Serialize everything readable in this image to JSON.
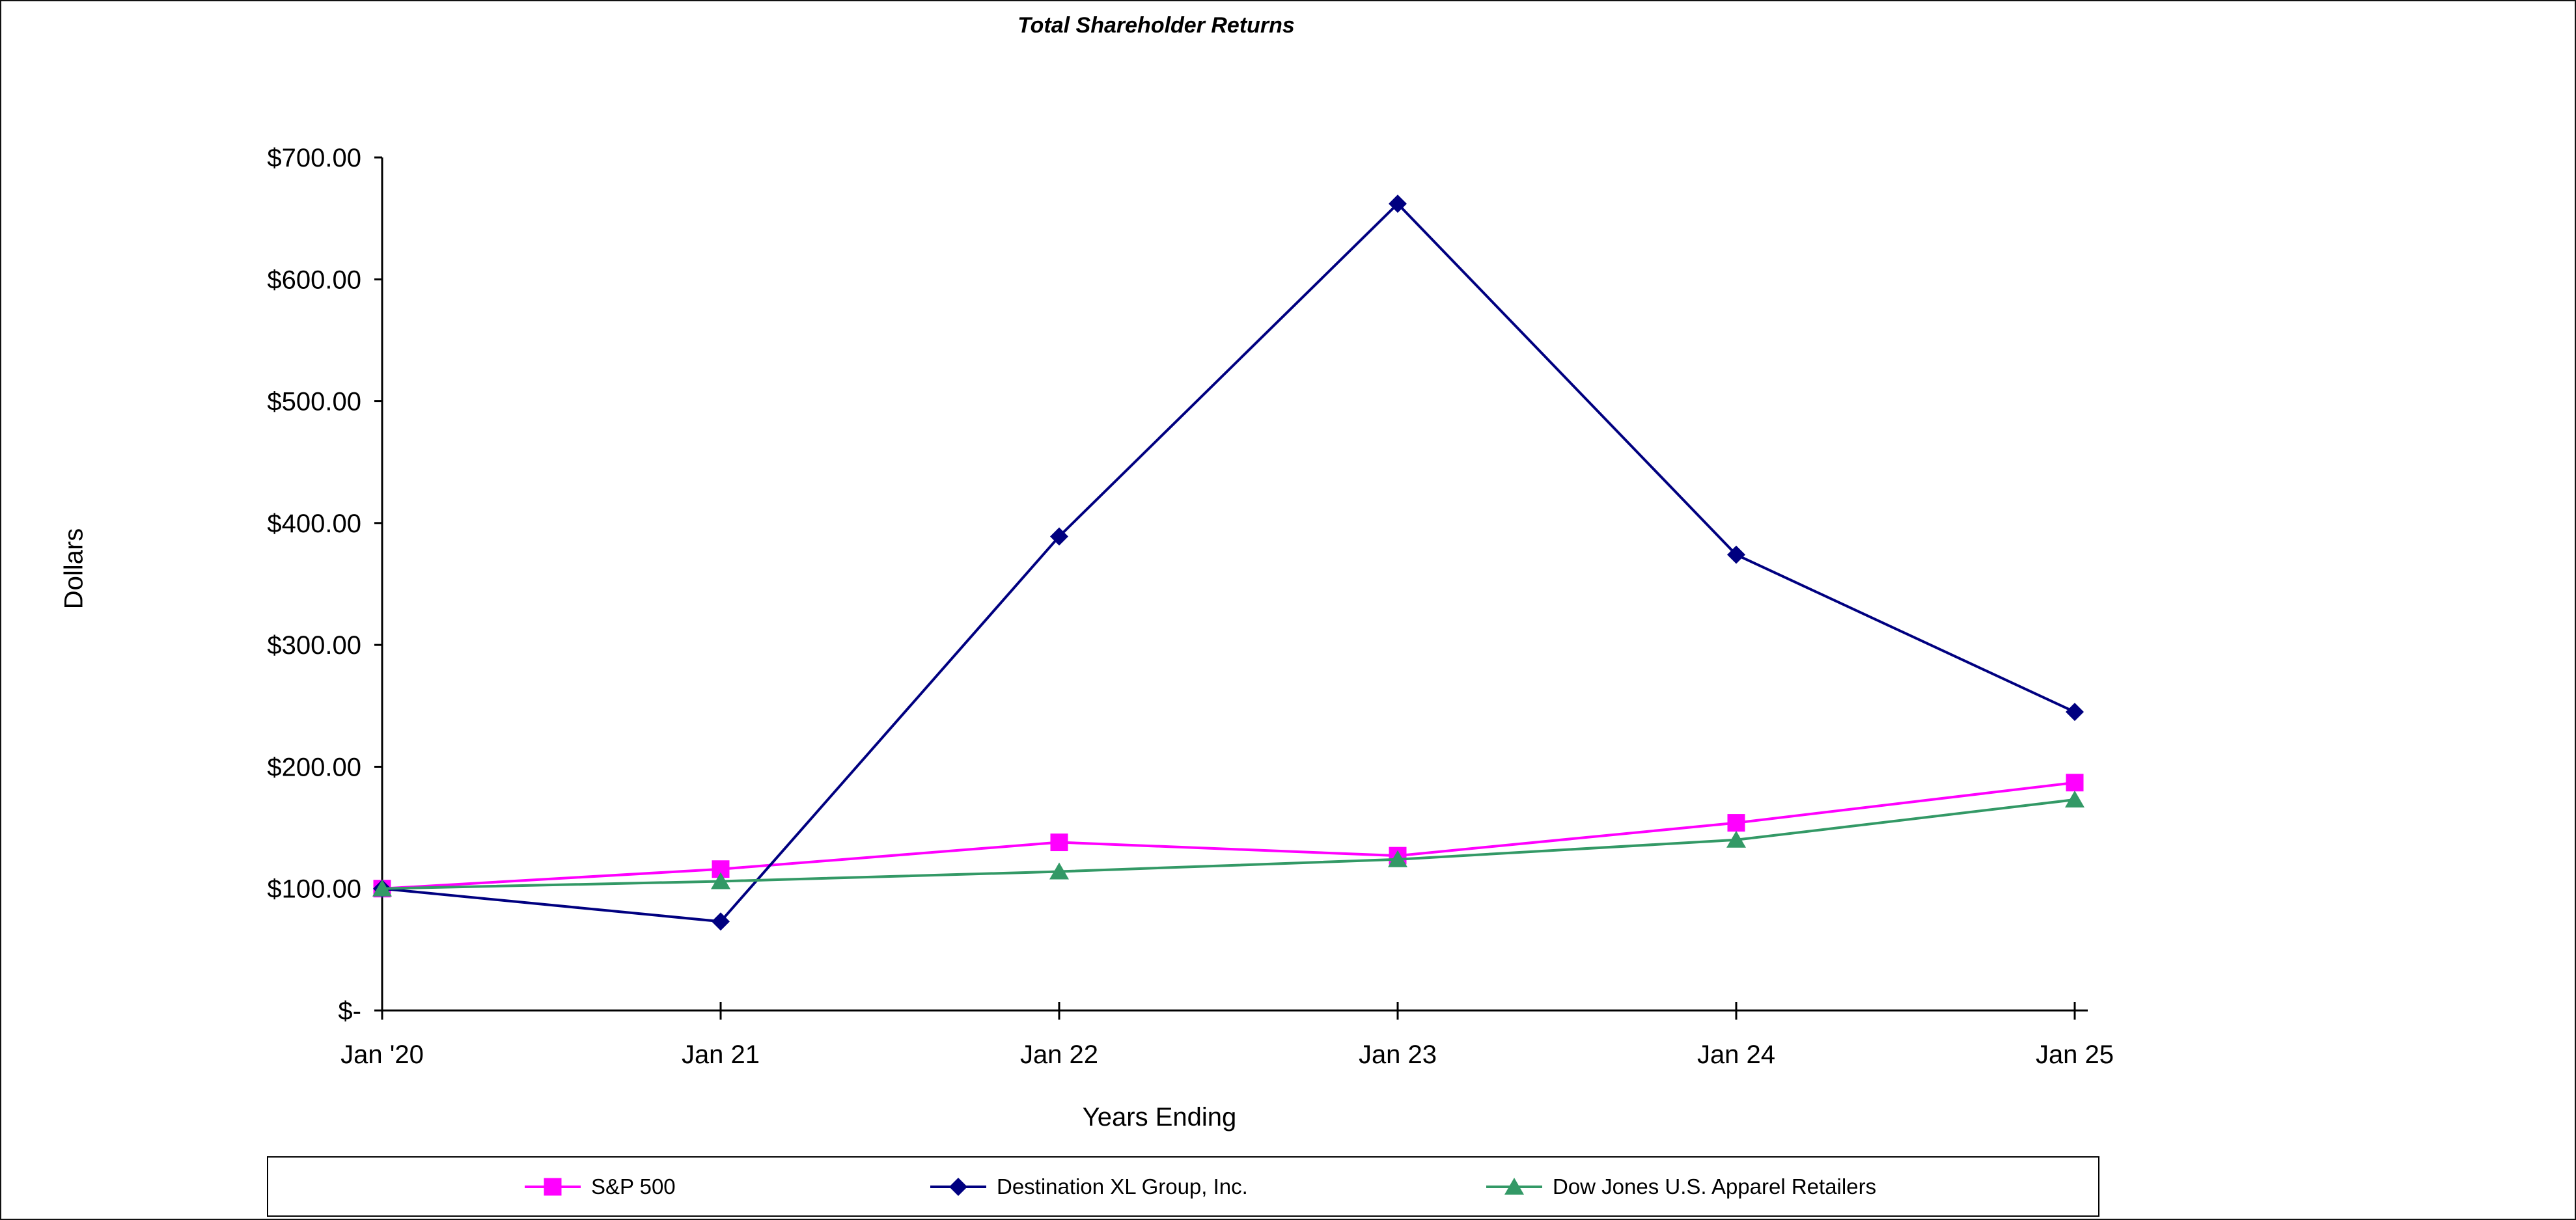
{
  "window": {
    "background_color": "#FFFFFF",
    "border_color": "#111111"
  },
  "chart_data": {
    "type": "line",
    "title": "Total Shareholder Returns",
    "xlabel": "Years Ending",
    "ylabel": "Dollars",
    "categories": [
      "Jan '20",
      "Jan 21",
      "Jan 22",
      "Jan 23",
      "Jan 24",
      "Jan 25"
    ],
    "y_tick_labels": [
      "$-",
      "$100.00",
      "$200.00",
      "$300.00",
      "$400.00",
      "$500.00",
      "$600.00",
      "$700.00"
    ],
    "ylim": [
      0,
      700
    ],
    "y_tick_step": 100,
    "grid": false,
    "legend_position": "bottom",
    "axis_color": "#000000",
    "series": [
      {
        "name": "S&P 500",
        "color": "#FF00FF",
        "marker": "square",
        "values": [
          100,
          116,
          138,
          127,
          154,
          187
        ]
      },
      {
        "name": "Destination XL Group, Inc.",
        "color": "#000080",
        "marker": "diamond",
        "values": [
          100,
          73,
          389,
          662,
          374,
          245
        ]
      },
      {
        "name": "Dow Jones U.S. Apparel Retailers",
        "color": "#339966",
        "marker": "triangle",
        "values": [
          100,
          106,
          114,
          124,
          140,
          173
        ]
      }
    ]
  }
}
